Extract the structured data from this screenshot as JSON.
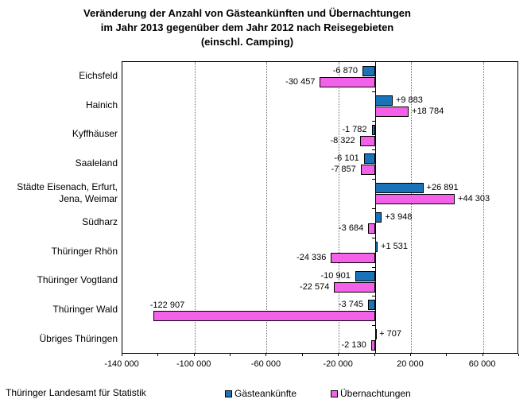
{
  "title": {
    "line1": "Veränderung der Anzahl von Gästeankünften und Übernachtungen",
    "line2": "im Jahr 2013 gegenüber dem Jahr 2012 nach Reisegebieten",
    "line3": "(einschl. Camping)"
  },
  "footer": {
    "source": "Thüringer Landesamt für Statistik"
  },
  "colors": {
    "guest_arrivals": "#1A72B8",
    "overnight_stays": "#F461E9",
    "axis": "#000000",
    "gridline": "#6e6e6e"
  },
  "chart_data": {
    "type": "bar",
    "orientation": "horizontal",
    "title": "Veränderung der Anzahl von Gästeankünften und Übernachtungen im Jahr 2013 gegenüber dem Jahr 2012 nach Reisegebieten (einschl. Camping)",
    "xlabel": "",
    "ylabel": "",
    "grid": "vertical-dotted",
    "legend_position": "bottom",
    "categories": [
      "Eichsfeld",
      "Hainich",
      "Kyffhäuser",
      "Saaleland",
      "Städte Eisenach, Erfurt,\nJena, Weimar",
      "Südharz",
      "Thüringer Rhön",
      "Thüringer Vogtland",
      "Thüringer Wald",
      "Übriges Thüringen"
    ],
    "series": [
      {
        "name": "Gästeankünfte",
        "color": "#1A72B8",
        "values": [
          -6870,
          9883,
          -1782,
          -6101,
          26891,
          3948,
          1531,
          -10901,
          -3745,
          707
        ],
        "labels": [
          "-6 870",
          "+9 883",
          "-1 782",
          "-6 101",
          "+26 891",
          "+3 948",
          "+1 531",
          "-10 901",
          "-3 745",
          "+ 707"
        ]
      },
      {
        "name": "Übernachtungen",
        "color": "#F461E9",
        "values": [
          -30457,
          18784,
          -8322,
          -7857,
          44303,
          -3684,
          -24336,
          -22574,
          -122907,
          -2130
        ],
        "labels": [
          "-30 457",
          "+18 784",
          "-8 322",
          "-7 857",
          "+44 303",
          "-3 684",
          "-24 336",
          "-22 574",
          "-122 907",
          "-2 130"
        ]
      }
    ],
    "x_axis": {
      "min": -140000,
      "max": 80000,
      "major_tick_interval": 40000,
      "minor_tick_interval": 20000,
      "tick_labels": [
        "-140 000",
        "-100 000",
        "-60 000",
        "-20 000",
        "20 000",
        "60 000"
      ],
      "tick_values": [
        -140000,
        -100000,
        -60000,
        -20000,
        20000,
        60000
      ],
      "gridline_values": [
        -100000,
        -60000,
        -20000,
        20000,
        60000
      ]
    }
  }
}
